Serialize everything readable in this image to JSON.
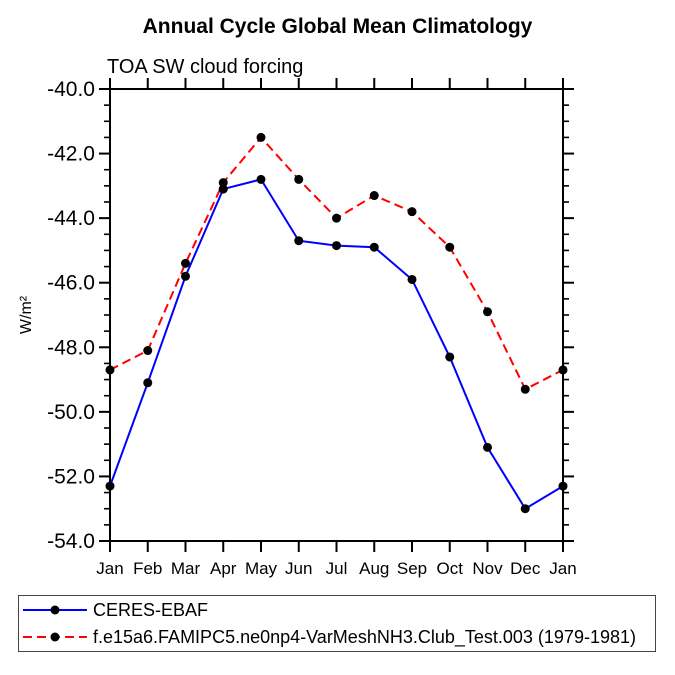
{
  "title": "Annual Cycle Global Mean Climatology",
  "subtitle": "TOA SW cloud forcing",
  "ylabel": "W/m²",
  "chart_data": {
    "type": "line",
    "title": "Annual Cycle Global Mean Climatology",
    "subtitle": "TOA SW cloud forcing",
    "xlabel": "",
    "ylabel": "W/m²",
    "categories": [
      "Jan",
      "Feb",
      "Mar",
      "Apr",
      "May",
      "Jun",
      "Jul",
      "Aug",
      "Sep",
      "Oct",
      "Nov",
      "Dec",
      "Jan"
    ],
    "series": [
      {
        "name": "CERES-EBAF",
        "color": "#0000ff",
        "line_style": "solid",
        "marker": "filled-circle",
        "marker_color": "#000000",
        "values": [
          -52.3,
          -49.1,
          -45.8,
          -43.1,
          -42.8,
          -44.7,
          -44.85,
          -44.9,
          -45.9,
          -48.3,
          -51.1,
          -53.0,
          -52.3
        ]
      },
      {
        "name": "f.e15a6.FAMIPC5.ne0np4-VarMeshNH3.Club_Test.003 (1979-1981)",
        "color": "#ff0000",
        "line_style": "dashed",
        "marker": "filled-circle",
        "marker_color": "#000000",
        "values": [
          -48.7,
          -48.1,
          -45.4,
          -42.9,
          -41.5,
          -42.8,
          -44.0,
          -43.3,
          -43.8,
          -44.9,
          -46.9,
          -49.3,
          -48.7
        ]
      }
    ],
    "ylim": [
      -54.0,
      -40.0
    ],
    "y_major_ticks": [
      -40.0,
      -42.0,
      -44.0,
      -46.0,
      -48.0,
      -50.0,
      -52.0,
      -54.0
    ],
    "y_minor_step": 0.5,
    "y_tick_decimals": 1,
    "grid": false,
    "frame": "box-with-outward-ticks",
    "legend_position": "bottom-left-box",
    "axis_color": "#000000"
  }
}
